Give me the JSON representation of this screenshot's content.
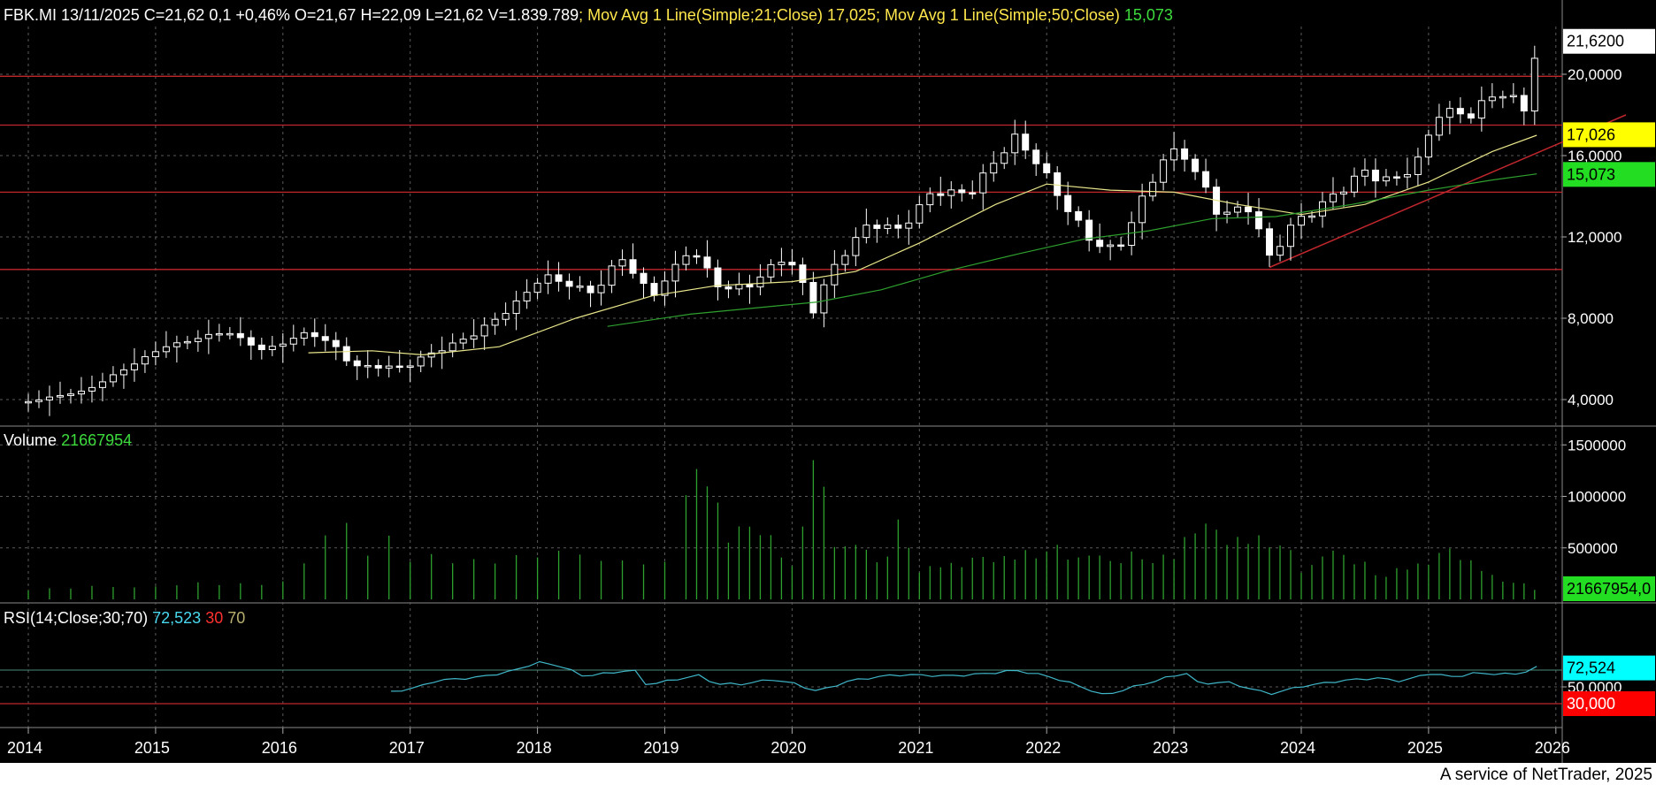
{
  "header": {
    "quote": "FBK.MI 13/11/2025 C=21,62 0,1 +0,46% O=21,67 H=22,09 L=21,62 V=1.839.789",
    "ma21_label": "; Mov Avg 1 Line(Simple;21;Close) ",
    "ma21_value": "17,025",
    "ma50_label": "; Mov Avg 1 Line(Simple;50;Close) ",
    "ma50_value": "15,073"
  },
  "colors": {
    "candle": "#ffffff",
    "ma21": "#e8e58a",
    "ma50": "#2ea02e",
    "hline": "#c0272d",
    "volume": "#2ea02e",
    "rsi": "#3fb6c8",
    "grid": "#5a5a5a"
  },
  "footer": "A service of NetTrader, 2025",
  "chart_data": [
    {
      "type": "candlestick",
      "panel": "price",
      "symbol": "FBK.MI",
      "interval": "monthly",
      "x_labels": [
        "2014",
        "2015",
        "2016",
        "2017",
        "2018",
        "2019",
        "2020",
        "2021",
        "2022",
        "2023",
        "2024",
        "2025",
        "2026"
      ],
      "y_ticks": [
        "4,0000",
        "8,0000",
        "12,0000",
        "16,0000",
        "20,0000"
      ],
      "ylim": [
        1.8,
        23.0
      ],
      "last_price_label": "21,6200",
      "ma21_label": "17,026",
      "ma50_label": "15,073",
      "horizontal_lines": [
        10.4,
        14.2,
        17.5,
        19.9
      ],
      "trendline": {
        "from": {
          "year": 2023.75,
          "price": 10.5
        },
        "to": {
          "year": 2026.55,
          "price": 18.0
        }
      },
      "anchors": [
        {
          "year": 2014.0,
          "price": 3.9
        },
        {
          "year": 2014.45,
          "price": 4.4
        },
        {
          "year": 2014.75,
          "price": 5.5
        },
        {
          "year": 2015.05,
          "price": 6.6
        },
        {
          "year": 2015.55,
          "price": 7.3
        },
        {
          "year": 2015.85,
          "price": 6.4
        },
        {
          "year": 2016.2,
          "price": 7.4
        },
        {
          "year": 2016.4,
          "price": 6.7
        },
        {
          "year": 2016.55,
          "price": 5.6
        },
        {
          "year": 2016.95,
          "price": 5.5
        },
        {
          "year": 2017.1,
          "price": 6.1
        },
        {
          "year": 2017.5,
          "price": 7.3
        },
        {
          "year": 2017.8,
          "price": 8.5
        },
        {
          "year": 2018.05,
          "price": 10.0
        },
        {
          "year": 2018.25,
          "price": 9.6
        },
        {
          "year": 2018.45,
          "price": 9.3
        },
        {
          "year": 2018.65,
          "price": 11.2
        },
        {
          "year": 2018.9,
          "price": 9.1
        },
        {
          "year": 2019.2,
          "price": 11.3
        },
        {
          "year": 2019.45,
          "price": 9.3
        },
        {
          "year": 2019.7,
          "price": 9.8
        },
        {
          "year": 2019.9,
          "price": 11.1
        },
        {
          "year": 2020.05,
          "price": 10.5
        },
        {
          "year": 2020.15,
          "price": 8.2
        },
        {
          "year": 2020.3,
          "price": 10.2
        },
        {
          "year": 2020.6,
          "price": 12.5
        },
        {
          "year": 2020.85,
          "price": 12.4
        },
        {
          "year": 2021.1,
          "price": 14.4
        },
        {
          "year": 2021.4,
          "price": 14.2
        },
        {
          "year": 2021.75,
          "price": 16.7
        },
        {
          "year": 2021.95,
          "price": 15.4
        },
        {
          "year": 2022.1,
          "price": 14.0
        },
        {
          "year": 2022.35,
          "price": 12.0
        },
        {
          "year": 2022.55,
          "price": 11.4
        },
        {
          "year": 2022.8,
          "price": 14.3
        },
        {
          "year": 2022.95,
          "price": 16.0
        },
        {
          "year": 2023.1,
          "price": 15.8
        },
        {
          "year": 2023.35,
          "price": 13.2
        },
        {
          "year": 2023.6,
          "price": 13.7
        },
        {
          "year": 2023.75,
          "price": 11.1
        },
        {
          "year": 2023.9,
          "price": 12.4
        },
        {
          "year": 2024.2,
          "price": 13.5
        },
        {
          "year": 2024.5,
          "price": 15.2
        },
        {
          "year": 2024.7,
          "price": 14.9
        },
        {
          "year": 2024.95,
          "price": 16.1
        },
        {
          "year": 2025.05,
          "price": 18.2
        },
        {
          "year": 2025.35,
          "price": 17.8
        },
        {
          "year": 2025.55,
          "price": 19.0
        },
        {
          "year": 2025.75,
          "price": 18.3
        },
        {
          "year": 2025.85,
          "price": 21.6
        }
      ],
      "ma21_anchors": [
        {
          "year": 2016.2,
          "price": 6.3
        },
        {
          "year": 2016.7,
          "price": 6.4
        },
        {
          "year": 2017.1,
          "price": 6.2
        },
        {
          "year": 2017.7,
          "price": 6.6
        },
        {
          "year": 2018.3,
          "price": 8.0
        },
        {
          "year": 2018.9,
          "price": 9.1
        },
        {
          "year": 2019.4,
          "price": 9.6
        },
        {
          "year": 2020.0,
          "price": 9.8
        },
        {
          "year": 2020.5,
          "price": 10.3
        },
        {
          "year": 2021.0,
          "price": 11.7
        },
        {
          "year": 2021.6,
          "price": 13.6
        },
        {
          "year": 2022.0,
          "price": 14.6
        },
        {
          "year": 2022.5,
          "price": 14.3
        },
        {
          "year": 2023.0,
          "price": 14.2
        },
        {
          "year": 2023.5,
          "price": 13.6
        },
        {
          "year": 2024.0,
          "price": 13.1
        },
        {
          "year": 2024.5,
          "price": 13.6
        },
        {
          "year": 2025.0,
          "price": 14.7
        },
        {
          "year": 2025.5,
          "price": 16.2
        },
        {
          "year": 2025.85,
          "price": 17.0
        }
      ],
      "ma50_anchors": [
        {
          "year": 2018.55,
          "price": 7.6
        },
        {
          "year": 2019.2,
          "price": 8.2
        },
        {
          "year": 2019.7,
          "price": 8.5
        },
        {
          "year": 2020.2,
          "price": 8.8
        },
        {
          "year": 2020.7,
          "price": 9.4
        },
        {
          "year": 2021.2,
          "price": 10.3
        },
        {
          "year": 2021.8,
          "price": 11.2
        },
        {
          "year": 2022.3,
          "price": 11.9
        },
        {
          "year": 2022.8,
          "price": 12.3
        },
        {
          "year": 2023.3,
          "price": 12.9
        },
        {
          "year": 2023.8,
          "price": 13.0
        },
        {
          "year": 2024.4,
          "price": 13.6
        },
        {
          "year": 2025.0,
          "price": 14.3
        },
        {
          "year": 2025.5,
          "price": 14.8
        },
        {
          "year": 2025.85,
          "price": 15.1
        }
      ]
    },
    {
      "type": "bar",
      "panel": "volume",
      "title": "Volume",
      "last_value": "21667954",
      "last_label": "21667954,0",
      "y_ticks": [
        "500000",
        "1000000",
        "1500000"
      ],
      "ylim": [
        0,
        1550000
      ],
      "anchors": [
        {
          "year": 2014.0,
          "value": 100000
        },
        {
          "year": 2016.0,
          "value": 170000
        },
        {
          "year": 2016.5,
          "value": 760000
        },
        {
          "year": 2016.6,
          "value": 230000
        },
        {
          "year": 2016.75,
          "value": 790000
        },
        {
          "year": 2017.0,
          "value": 380000
        },
        {
          "year": 2018.0,
          "value": 420000
        },
        {
          "year": 2018.4,
          "value": 450000
        },
        {
          "year": 2019.0,
          "value": 320000
        },
        {
          "year": 2019.2,
          "value": 1320000
        },
        {
          "year": 2019.35,
          "value": 1120000
        },
        {
          "year": 2019.5,
          "value": 640000
        },
        {
          "year": 2019.8,
          "value": 700000
        },
        {
          "year": 2020.0,
          "value": 300000
        },
        {
          "year": 2020.1,
          "value": 920000
        },
        {
          "year": 2020.18,
          "value": 1480000
        },
        {
          "year": 2020.3,
          "value": 600000
        },
        {
          "year": 2020.5,
          "value": 540000
        },
        {
          "year": 2020.7,
          "value": 350000
        },
        {
          "year": 2020.85,
          "value": 720000
        },
        {
          "year": 2021.0,
          "value": 300000
        },
        {
          "year": 2022.0,
          "value": 480000
        },
        {
          "year": 2022.5,
          "value": 400000
        },
        {
          "year": 2023.0,
          "value": 420000
        },
        {
          "year": 2023.15,
          "value": 740000
        },
        {
          "year": 2023.4,
          "value": 600000
        },
        {
          "year": 2023.8,
          "value": 590000
        },
        {
          "year": 2024.0,
          "value": 300000
        },
        {
          "year": 2024.3,
          "value": 500000
        },
        {
          "year": 2024.6,
          "value": 230000
        },
        {
          "year": 2025.0,
          "value": 380000
        },
        {
          "year": 2025.2,
          "value": 480000
        },
        {
          "year": 2025.5,
          "value": 230000
        },
        {
          "year": 2025.85,
          "value": 100000
        }
      ]
    },
    {
      "type": "line",
      "panel": "rsi",
      "title": "RSI(14;Close;30;70)",
      "value": "72,523",
      "level_low": "30",
      "level_high": "70",
      "last_label": "72,524",
      "low_label": "30,000",
      "y_ticks": [
        "50,0000"
      ],
      "ylim": [
        28,
        85
      ],
      "levels": [
        30,
        70
      ],
      "anchors": [
        {
          "year": 2016.85,
          "value": 44
        },
        {
          "year": 2017.05,
          "value": 48
        },
        {
          "year": 2017.2,
          "value": 56
        },
        {
          "year": 2017.5,
          "value": 61
        },
        {
          "year": 2017.8,
          "value": 70
        },
        {
          "year": 2018.0,
          "value": 80
        },
        {
          "year": 2018.25,
          "value": 72
        },
        {
          "year": 2018.3,
          "value": 61
        },
        {
          "year": 2018.6,
          "value": 66
        },
        {
          "year": 2018.75,
          "value": 72
        },
        {
          "year": 2018.85,
          "value": 54
        },
        {
          "year": 2019.1,
          "value": 60
        },
        {
          "year": 2019.25,
          "value": 65
        },
        {
          "year": 2019.4,
          "value": 53
        },
        {
          "year": 2019.6,
          "value": 52
        },
        {
          "year": 2019.85,
          "value": 58
        },
        {
          "year": 2020.0,
          "value": 55
        },
        {
          "year": 2020.2,
          "value": 46
        },
        {
          "year": 2020.45,
          "value": 58
        },
        {
          "year": 2020.8,
          "value": 63
        },
        {
          "year": 2021.2,
          "value": 63
        },
        {
          "year": 2021.75,
          "value": 70
        },
        {
          "year": 2022.0,
          "value": 62
        },
        {
          "year": 2022.3,
          "value": 48
        },
        {
          "year": 2022.45,
          "value": 40
        },
        {
          "year": 2022.7,
          "value": 52
        },
        {
          "year": 2022.95,
          "value": 62
        },
        {
          "year": 2023.1,
          "value": 66
        },
        {
          "year": 2023.2,
          "value": 52
        },
        {
          "year": 2023.4,
          "value": 55
        },
        {
          "year": 2023.75,
          "value": 42
        },
        {
          "year": 2024.0,
          "value": 52
        },
        {
          "year": 2024.3,
          "value": 57
        },
        {
          "year": 2024.6,
          "value": 59
        },
        {
          "year": 2024.8,
          "value": 56
        },
        {
          "year": 2025.0,
          "value": 67
        },
        {
          "year": 2025.2,
          "value": 63
        },
        {
          "year": 2025.35,
          "value": 67
        },
        {
          "year": 2025.7,
          "value": 64
        },
        {
          "year": 2025.85,
          "value": 72
        }
      ]
    }
  ]
}
